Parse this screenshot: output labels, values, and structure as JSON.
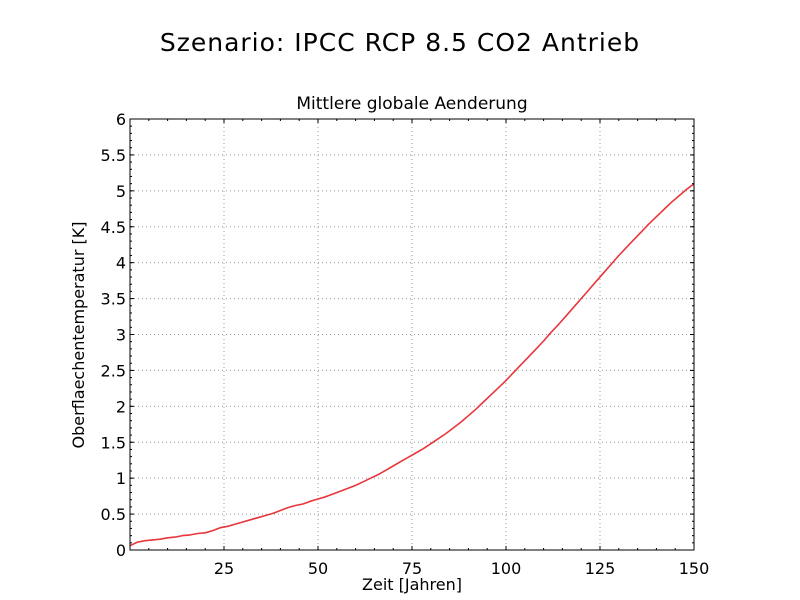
{
  "page": {
    "title": "Szenario: IPCC RCP 8.5 CO2 Antrieb"
  },
  "chart_data": {
    "type": "line",
    "title": "Mittlere globale Aenderung",
    "xlabel": "Zeit [Jahren]",
    "ylabel": "Oberflaechentemperatur [K]",
    "xlim": [
      0,
      150
    ],
    "ylim": [
      0,
      6
    ],
    "xticks": [
      25,
      50,
      75,
      100,
      125,
      150
    ],
    "xtick_labels": [
      "25",
      "50",
      "75",
      "100",
      "125",
      "150"
    ],
    "yticks": [
      0,
      0.5,
      1,
      1.5,
      2,
      2.5,
      3,
      3.5,
      4,
      4.5,
      5,
      5.5,
      6
    ],
    "ytick_labels": [
      "0",
      "0.5",
      "1",
      "1.5",
      "2",
      "2.5",
      "3",
      "3.5",
      "4",
      "4.5",
      "5",
      "5.5",
      "6"
    ],
    "grid": true,
    "grid_style": "dotted",
    "line_color": "#e8363c",
    "series": [
      {
        "x": [
          0,
          2,
          4,
          6,
          8,
          10,
          12,
          14,
          16,
          18,
          20,
          22,
          24,
          26,
          28,
          30,
          32,
          34,
          36,
          38,
          40,
          42,
          44,
          46,
          48,
          50,
          52,
          54,
          56,
          58,
          60,
          62,
          64,
          66,
          68,
          70,
          72,
          74,
          76,
          78,
          80,
          82,
          84,
          86,
          88,
          90,
          92,
          94,
          96,
          98,
          100,
          102,
          104,
          106,
          108,
          110,
          112,
          114,
          116,
          118,
          120,
          122,
          124,
          126,
          128,
          130,
          132,
          134,
          136,
          138,
          140,
          142,
          144,
          146,
          148,
          150
        ],
        "values": [
          0.06,
          0.11,
          0.13,
          0.14,
          0.15,
          0.17,
          0.18,
          0.2,
          0.21,
          0.23,
          0.24,
          0.27,
          0.31,
          0.33,
          0.36,
          0.39,
          0.42,
          0.45,
          0.48,
          0.51,
          0.55,
          0.59,
          0.62,
          0.64,
          0.68,
          0.71,
          0.74,
          0.78,
          0.82,
          0.86,
          0.9,
          0.95,
          1.0,
          1.05,
          1.11,
          1.17,
          1.23,
          1.29,
          1.35,
          1.41,
          1.48,
          1.55,
          1.62,
          1.7,
          1.78,
          1.87,
          1.96,
          2.06,
          2.16,
          2.26,
          2.36,
          2.47,
          2.58,
          2.69,
          2.8,
          2.91,
          3.03,
          3.14,
          3.26,
          3.38,
          3.5,
          3.62,
          3.74,
          3.86,
          3.98,
          4.1,
          4.21,
          4.32,
          4.43,
          4.54,
          4.64,
          4.74,
          4.84,
          4.93,
          5.02,
          5.1
        ]
      }
    ]
  }
}
